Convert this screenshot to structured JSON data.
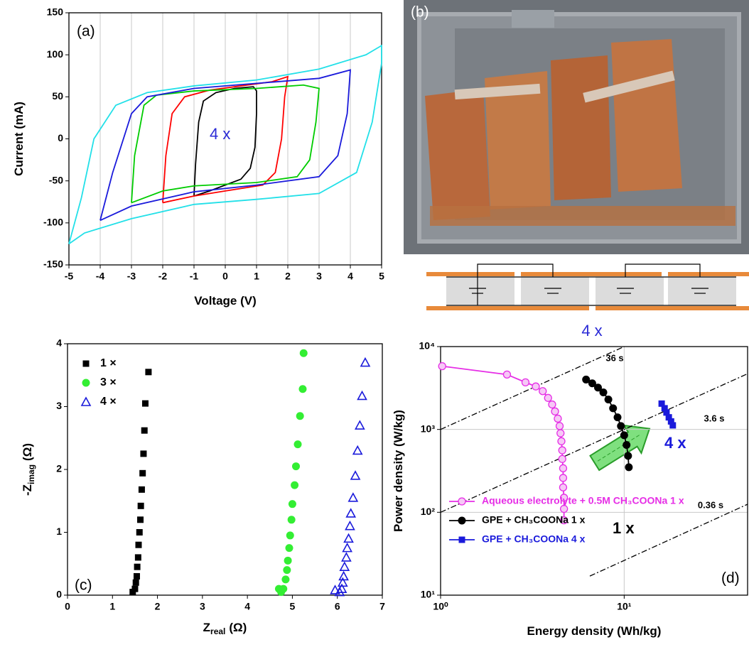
{
  "photo_panel": {
    "label": "(b)",
    "caption": "4 x"
  },
  "chart_data": [
    {
      "type": "line",
      "label": "(a)",
      "xlabel": "Voltage (V)",
      "ylabel": "Current (mA)",
      "xlim": [
        -5,
        5
      ],
      "ylim": [
        -150,
        150
      ],
      "xticks": [
        -5,
        -4,
        -3,
        -2,
        -1,
        0,
        1,
        2,
        3,
        4,
        5
      ],
      "yticks": [
        -150,
        -100,
        -50,
        0,
        50,
        100,
        150
      ],
      "grid": "x",
      "annotations": [
        {
          "text": "4 x",
          "color": "#2b2bd6"
        }
      ],
      "series": [
        {
          "color": "#000000",
          "x": [
            -1,
            -0.95,
            -0.85,
            -0.7,
            -0.3,
            0.3,
            0.9,
            1,
            1,
            0.95,
            0.8,
            0.5,
            0,
            -0.5,
            -1
          ],
          "y": [
            -68,
            -30,
            20,
            45,
            55,
            60,
            62,
            57,
            30,
            -10,
            -35,
            -48,
            -55,
            -62,
            -68
          ]
        },
        {
          "color": "#ff0000",
          "x": [
            -2,
            -1.9,
            -1.7,
            -1.3,
            -0.5,
            0.5,
            1.5,
            2,
            1.9,
            1.8,
            1.6,
            1.2,
            0,
            -1,
            -2
          ],
          "y": [
            -76,
            -20,
            30,
            50,
            58,
            63,
            68,
            74,
            50,
            0,
            -40,
            -55,
            -62,
            -68,
            -76
          ]
        },
        {
          "color": "#00cc00",
          "x": [
            -3,
            -2.9,
            -2.6,
            -2.2,
            -1,
            1,
            2.5,
            3,
            2.9,
            2.7,
            2.3,
            1,
            -1,
            -2,
            -3
          ],
          "y": [
            -76,
            -20,
            40,
            52,
            57,
            60,
            64,
            60,
            20,
            -25,
            -45,
            -52,
            -56,
            -62,
            -76
          ]
        },
        {
          "color": "#1a1adb",
          "x": [
            -4,
            -3.6,
            -3,
            -2.5,
            -1,
            1,
            3,
            4,
            3.9,
            3.6,
            3,
            1,
            -1,
            -3,
            -4
          ],
          "y": [
            -97,
            -40,
            30,
            50,
            60,
            66,
            72,
            82,
            30,
            -20,
            -45,
            -55,
            -63,
            -80,
            -97
          ]
        },
        {
          "color": "#22e0e8",
          "x": [
            -5,
            -4.6,
            -4.2,
            -3.5,
            -2.5,
            -1,
            1,
            3,
            4.5,
            5,
            5,
            4.7,
            4.2,
            3,
            1,
            -1,
            -3,
            -4.5,
            -5
          ],
          "y": [
            -125,
            -70,
            0,
            40,
            55,
            63,
            70,
            83,
            100,
            111,
            90,
            20,
            -40,
            -65,
            -72,
            -78,
            -95,
            -112,
            -125
          ]
        }
      ]
    },
    {
      "type": "scatter",
      "label": "(c)",
      "xlabel": "Z",
      "xlabel_sub": "real",
      "xlabel_unit": "(Ω)",
      "ylabel": "-Z",
      "ylabel_sub": "imag",
      "ylabel_unit": "(Ω)",
      "xlim": [
        0,
        7
      ],
      "ylim": [
        0,
        4
      ],
      "xticks": [
        0,
        1,
        2,
        3,
        4,
        5,
        6,
        7
      ],
      "yticks": [
        0,
        1,
        2,
        3,
        4
      ],
      "legend": "upper left",
      "series": [
        {
          "name": "1 ×",
          "color": "#000000",
          "marker": "square",
          "x": [
            1.45,
            1.5,
            1.52,
            1.54,
            1.55,
            1.57,
            1.58,
            1.6,
            1.62,
            1.63,
            1.65,
            1.67,
            1.69,
            1.71,
            1.73,
            1.8
          ],
          "y": [
            0.05,
            0.1,
            0.2,
            0.3,
            0.45,
            0.6,
            0.8,
            1.0,
            1.2,
            1.42,
            1.68,
            1.94,
            2.25,
            2.62,
            3.05,
            3.55
          ]
        },
        {
          "name": "3 ×",
          "color": "#33ee33",
          "marker": "circle",
          "x": [
            4.7,
            4.75,
            4.8,
            4.85,
            4.88,
            4.9,
            4.93,
            4.95,
            4.98,
            5.0,
            5.05,
            5.08,
            5.12,
            5.17,
            5.23,
            5.25
          ],
          "y": [
            0.1,
            0.05,
            0.1,
            0.25,
            0.4,
            0.55,
            0.75,
            0.95,
            1.2,
            1.45,
            1.75,
            2.05,
            2.4,
            2.85,
            3.28,
            3.85
          ]
        },
        {
          "name": "4 ×",
          "color": "#1a1adb",
          "marker": "triangle-open",
          "x": [
            5.95,
            6.05,
            6.1,
            6.12,
            6.14,
            6.16,
            6.2,
            6.22,
            6.25,
            6.28,
            6.3,
            6.35,
            6.4,
            6.45,
            6.5,
            6.55,
            6.62
          ],
          "y": [
            0.08,
            0.05,
            0.1,
            0.2,
            0.3,
            0.45,
            0.6,
            0.75,
            0.9,
            1.1,
            1.3,
            1.55,
            1.9,
            2.3,
            2.7,
            3.17,
            3.7
          ]
        }
      ]
    },
    {
      "type": "line",
      "label": "(d)",
      "xlabel": "Energy density (Wh/kg)",
      "ylabel": "Power density (W/kg)",
      "xscale": "log",
      "yscale": "log",
      "xlim": [
        1,
        47
      ],
      "ylim": [
        10,
        10000
      ],
      "xticks": [
        {
          "value": 1,
          "label": "10⁰"
        },
        {
          "value": 10,
          "label": "10¹"
        }
      ],
      "yticks": [
        {
          "value": 10,
          "label": "10¹"
        },
        {
          "value": 100,
          "label": "10²"
        },
        {
          "value": 1000,
          "label": "10³"
        },
        {
          "value": 10000,
          "label": "10⁴"
        }
      ],
      "grid": true,
      "legend": "lower left",
      "annotations": [
        {
          "text": "1 x",
          "color": "#000000"
        },
        {
          "text": "4 x",
          "color": "#1a1adb"
        }
      ],
      "ref_lines": [
        {
          "label": "36 s",
          "x": [
            1,
            10
          ],
          "y": [
            1000,
            10000
          ]
        },
        {
          "label": "3.6 s",
          "x": [
            1,
            47
          ],
          "y": [
            100,
            4700
          ]
        },
        {
          "label": "0.36 s",
          "x": [
            6.5,
            47
          ],
          "y": [
            17,
            125
          ]
        }
      ],
      "series": [
        {
          "name": "Aqueous electrolyte + 0.5M CH₃COONa 1 x",
          "color": "#e62ee6",
          "marker": "circle-half",
          "x": [
            1.02,
            2.3,
            2.9,
            3.3,
            3.6,
            3.85,
            4.05,
            4.2,
            4.35,
            4.45,
            4.5,
            4.55,
            4.6,
            4.6,
            4.65,
            4.65,
            4.65,
            4.7,
            4.7,
            4.7
          ],
          "y": [
            5800,
            4600,
            3700,
            3300,
            2900,
            2400,
            2000,
            1650,
            1350,
            1100,
            900,
            720,
            560,
            440,
            340,
            260,
            200,
            150,
            110,
            80
          ]
        },
        {
          "name": "GPE + CH₃COONa 1 x",
          "color": "#000000",
          "marker": "circle",
          "x": [
            6.2,
            6.7,
            7.2,
            7.7,
            8.2,
            8.7,
            9.2,
            9.6,
            10,
            10.3,
            10.5,
            10.6
          ],
          "y": [
            4000,
            3600,
            3200,
            2800,
            2300,
            1800,
            1400,
            1100,
            850,
            650,
            480,
            350
          ]
        },
        {
          "name": "GPE + CH₃COONa 4 x",
          "color": "#1a1adb",
          "marker": "square",
          "x": [
            16,
            16.6,
            17,
            17.5,
            18,
            18.4
          ],
          "y": [
            2050,
            1800,
            1600,
            1400,
            1250,
            1120
          ]
        }
      ]
    }
  ]
}
